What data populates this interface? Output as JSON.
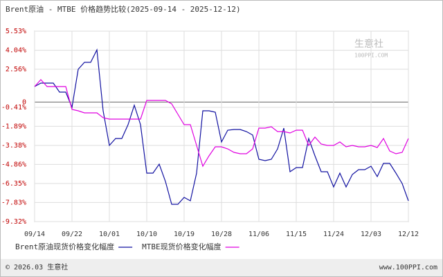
{
  "chart_data": {
    "type": "line",
    "title": "Brent原油 - MTBE 价格趋势比较(2025-09-14 - 2025-12-12)",
    "categories": [
      "09/14",
      null,
      null,
      null,
      null,
      null,
      "09/22",
      null,
      null,
      null,
      null,
      null,
      "10/01",
      null,
      null,
      null,
      null,
      null,
      "10/10",
      null,
      null,
      null,
      null,
      null,
      "10/19",
      null,
      null,
      null,
      null,
      null,
      "10/28",
      null,
      null,
      null,
      null,
      null,
      "11/06",
      null,
      null,
      null,
      null,
      null,
      "11/15",
      null,
      null,
      null,
      null,
      null,
      "11/24",
      null,
      null,
      null,
      null,
      null,
      "12/03",
      null,
      null,
      null,
      null,
      null,
      "12/12"
    ],
    "series": [
      {
        "name": "Brent原油现货价格变化幅度",
        "color": "#1010a0",
        "values": [
          1.21,
          1.48,
          1.48,
          1.48,
          0.78,
          0.78,
          -0.41,
          2.56,
          3.1,
          3.1,
          4.07,
          -0.68,
          -3.38,
          -2.84,
          -2.84,
          -1.76,
          -0.25,
          -1.76,
          -5.54,
          -5.54,
          -4.84,
          -6.19,
          -7.97,
          -7.97,
          -7.43,
          -7.7,
          -5.54,
          -0.68,
          -0.68,
          -0.79,
          -3.11,
          -2.19,
          -2.14,
          -2.14,
          -2.3,
          -2.57,
          -4.46,
          -4.57,
          -4.46,
          -3.65,
          -2.03,
          -5.43,
          -5.11,
          -5.11,
          -2.84,
          -4.19,
          -5.43,
          -5.43,
          -6.62,
          -5.54,
          -6.62,
          -5.65,
          -5.27,
          -5.27,
          -5.0,
          -5.81,
          -4.78,
          -4.78,
          -5.54,
          -6.35,
          -7.7
        ]
      },
      {
        "name": "MTBE现货价格变化幅度",
        "color": "#e000e0",
        "values": [
          1.21,
          1.75,
          1.21,
          1.21,
          1.21,
          1.21,
          -0.57,
          -0.68,
          -0.84,
          -0.84,
          -0.84,
          -1.22,
          -1.33,
          -1.33,
          -1.33,
          -1.33,
          -1.33,
          -1.33,
          0.13,
          0.13,
          0.13,
          0.13,
          -0.14,
          -0.95,
          -1.76,
          -1.76,
          -3.38,
          -5.0,
          -4.19,
          -3.49,
          -3.49,
          -3.65,
          -3.92,
          -4.03,
          -4.03,
          -3.65,
          -2.03,
          -2.03,
          -1.92,
          -2.3,
          -2.3,
          -2.41,
          -2.19,
          -2.19,
          -3.38,
          -2.73,
          -3.27,
          -3.38,
          -3.38,
          -3.11,
          -3.49,
          -3.38,
          -3.49,
          -3.49,
          -3.38,
          -3.54,
          -2.84,
          -3.81,
          -4.03,
          -3.92,
          -2.84
        ]
      }
    ],
    "ylim": [
      -9.32,
      5.53
    ],
    "yticks": [
      {
        "value": 5.53,
        "label": "5.53%"
      },
      {
        "value": 4.04,
        "label": "4.04%"
      },
      {
        "value": 2.56,
        "label": "2.56%"
      },
      0,
      {
        "value": -0.41,
        "label": "-0.41%"
      },
      {
        "value": -1.89,
        "label": "-1.89%"
      },
      {
        "value": -3.38,
        "label": "-3.38%"
      },
      {
        "value": -4.86,
        "label": "-4.86%"
      },
      {
        "value": -6.35,
        "label": "-6.35%"
      },
      {
        "value": -7.83,
        "label": "-7.83%"
      },
      {
        "value": -9.32,
        "label": "-9.32%"
      }
    ],
    "grid": true,
    "watermark": "生意社",
    "watermark_sub": "100PPI.COM",
    "footer_left": "© 2026.03 生意社",
    "footer_right": "www.100PPI.com"
  }
}
